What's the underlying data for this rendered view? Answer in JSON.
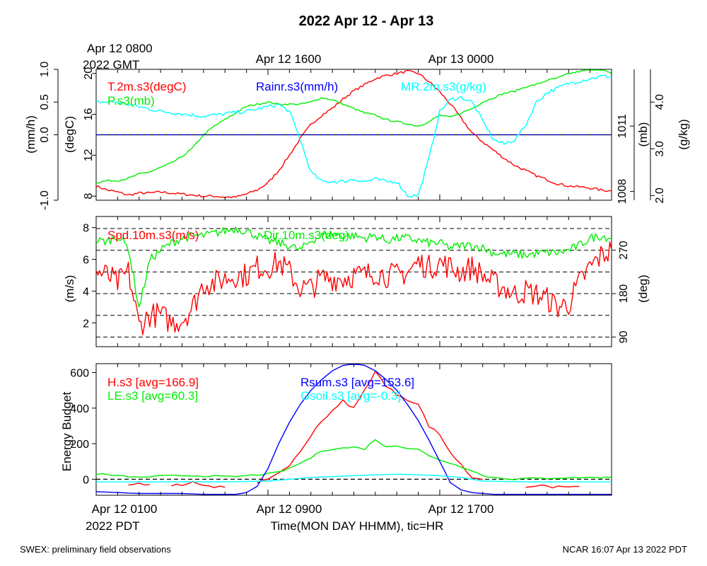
{
  "title": "2022 Apr 12 - Apr 13",
  "top_time_labels": {
    "first": "Apr 12 0800",
    "first_sub": "2022 GMT",
    "mid": "Apr 12 1600",
    "last": "Apr 13 0000"
  },
  "bottom_time_labels": {
    "first": "Apr 12 0100",
    "first_sub": "2022 PDT",
    "mid": "Apr 12 0900",
    "last": "Apr 12 1700",
    "axis_title": "Time(MON DAY HHMM), tic=HR"
  },
  "footer": {
    "left": "SWEX: preliminary field observations",
    "right": "NCAR 16:07 Apr 13 2022 PDT"
  },
  "colors": {
    "red": "#ff0000",
    "green": "#00ee00",
    "blue": "#0000ff",
    "cyan": "#00ffff",
    "black": "#000000"
  },
  "chart_data": [
    {
      "type": "line",
      "panel": "met",
      "x_unit": "hours since Apr 12 0100 PDT",
      "xlim": [
        0,
        24
      ],
      "axes": {
        "rain": {
          "label": "(mm/h)",
          "ylim": [
            -1.0,
            1.0
          ],
          "ticks": [
            "-1.0",
            "0.0",
            "0.5",
            "1.0"
          ],
          "tick_values": [
            -1.0,
            0.0,
            0.5,
            1.0
          ]
        },
        "temp": {
          "label": "(degC)",
          "ylim": [
            7.6,
            20.4
          ],
          "ticks": [
            "8",
            "12",
            "16",
            "20"
          ],
          "tick_values": [
            8,
            12,
            16,
            20
          ]
        },
        "pres": {
          "label": "(mb)",
          "ylim": [
            1007.6,
            1013.6
          ],
          "ticks": [
            "1008",
            "1011"
          ],
          "tick_values": [
            1008,
            1011
          ]
        },
        "mr": {
          "label": "(g/kg)",
          "ylim": [
            1.9,
            4.7
          ],
          "ticks": [
            "2.0",
            "3.0",
            "4.0"
          ],
          "tick_values": [
            2.0,
            3.0,
            4.0
          ]
        }
      },
      "series": [
        {
          "name": "T.2m.s3(degC)",
          "axis": "temp",
          "color": "#ff0000",
          "x": [
            0,
            0.5,
            1,
            1.5,
            2,
            2.5,
            3,
            3.5,
            4,
            4.5,
            5,
            5.5,
            6,
            6.5,
            7,
            7.5,
            8,
            8.5,
            9,
            9.5,
            10,
            10.5,
            11,
            11.5,
            12,
            12.5,
            13,
            13.5,
            14,
            14.5,
            15,
            15.5,
            16,
            16.5,
            17,
            17.5,
            18,
            18.5,
            19,
            19.5,
            20,
            20.5,
            21,
            21.5,
            22,
            22.5,
            23,
            23.5,
            24
          ],
          "y": [
            9.0,
            8.6,
            8.4,
            8.1,
            8.3,
            8.3,
            8.4,
            8.3,
            8.2,
            8.1,
            8.0,
            8.0,
            7.9,
            7.9,
            8.2,
            8.6,
            9.3,
            10.5,
            12.0,
            13.6,
            15.0,
            15.9,
            16.6,
            17.5,
            18.3,
            18.9,
            19.5,
            19.8,
            20.0,
            20.2,
            20.0,
            19.2,
            18.2,
            17.0,
            15.6,
            14.2,
            13.3,
            12.5,
            11.7,
            11.0,
            10.5,
            10.0,
            9.6,
            9.2,
            9.0,
            8.9,
            8.8,
            8.6,
            8.5
          ],
          "noise": 0.12
        },
        {
          "name": "P.s3(mb)",
          "axis": "pres",
          "color": "#00ee00",
          "x": [
            0,
            0.5,
            1,
            1.5,
            2,
            2.5,
            3,
            3.5,
            4,
            4.5,
            5,
            5.5,
            6,
            6.5,
            7,
            7.5,
            8,
            8.5,
            9,
            9.5,
            10,
            10.5,
            11,
            11.5,
            12,
            12.5,
            13,
            13.5,
            14,
            14.5,
            15,
            15.5,
            16,
            16.5,
            17,
            17.5,
            18,
            18.5,
            19,
            19.5,
            20,
            20.5,
            21,
            21.5,
            22,
            22.5,
            23,
            23.5,
            24
          ],
          "y": [
            1008.4,
            1008.5,
            1008.5,
            1008.6,
            1008.8,
            1008.9,
            1009.1,
            1009.3,
            1009.6,
            1010.0,
            1010.6,
            1011.0,
            1011.3,
            1011.6,
            1011.9,
            1012.0,
            1012.1,
            1012.0,
            1012.0,
            1012.0,
            1012.1,
            1012.3,
            1012.2,
            1012.0,
            1011.8,
            1011.6,
            1011.5,
            1011.3,
            1011.2,
            1011.1,
            1011.0,
            1011.2,
            1011.5,
            1011.4,
            1011.6,
            1011.8,
            1012.1,
            1012.3,
            1012.5,
            1012.6,
            1012.8,
            1012.9,
            1013.1,
            1013.2,
            1013.4,
            1013.5,
            1013.6,
            1013.6,
            1013.4
          ],
          "noise": 0.04
        },
        {
          "name": "Rainr.s3(mm/h)",
          "axis": "rain",
          "color": "#0000ff",
          "x": [
            0,
            24
          ],
          "y": [
            0.0,
            0.0
          ],
          "noise": 0
        },
        {
          "name": "MR.2m.s3(g/kg)",
          "axis": "mr",
          "color": "#00ffff",
          "x": [
            0,
            0.5,
            1,
            1.5,
            2,
            2.5,
            3,
            3.5,
            4,
            4.5,
            5,
            5.5,
            6,
            6.5,
            7,
            7.5,
            8,
            8.5,
            9,
            9.5,
            10,
            10.5,
            11,
            11.5,
            12,
            12.5,
            13,
            13.5,
            14,
            14.5,
            15,
            15.5,
            16,
            16.5,
            17,
            17.5,
            18,
            18.5,
            19,
            19.5,
            20,
            20.5,
            21,
            21.5,
            22,
            22.5,
            23,
            23.5,
            24
          ],
          "y": [
            4.0,
            4.0,
            4.0,
            3.95,
            3.9,
            3.85,
            3.8,
            3.78,
            3.75,
            3.72,
            3.7,
            3.72,
            3.75,
            3.78,
            3.8,
            3.85,
            3.9,
            3.95,
            3.8,
            3.2,
            2.5,
            2.3,
            2.3,
            2.3,
            2.35,
            2.3,
            2.35,
            2.3,
            2.3,
            2.0,
            2.0,
            2.8,
            3.8,
            4.05,
            4.1,
            4.0,
            3.6,
            3.2,
            3.1,
            3.2,
            3.5,
            4.0,
            4.2,
            4.3,
            4.4,
            4.45,
            4.5,
            4.55,
            4.55
          ],
          "noise": 0.04
        }
      ],
      "legend_labels": [
        "T.2m.s3(degC)",
        "P.s3(mb)",
        "Rainr.s3(mm/h)",
        "MR.2m.s3(g/kg)"
      ]
    },
    {
      "type": "line",
      "panel": "wind",
      "x_unit": "hours since Apr 12 0100 PDT",
      "xlim": [
        0,
        24
      ],
      "axes": {
        "spd": {
          "label": "(m/s)",
          "ylim": [
            0.5,
            8.7
          ],
          "ticks": [
            "2",
            "4",
            "6",
            "8"
          ],
          "tick_values": [
            2,
            4,
            6,
            8
          ]
        },
        "dir": {
          "label": "(deg)",
          "ylim": [
            70,
            340
          ],
          "ticks": [
            "90",
            "180",
            "270"
          ],
          "tick_values": [
            90,
            180,
            270
          ]
        }
      },
      "dashed_dir_lines": [
        90,
        135,
        180,
        225,
        270,
        315
      ],
      "series": [
        {
          "name": "Spd.10m.s3(m/s)",
          "axis": "spd",
          "color": "#ff0000",
          "x": [
            0,
            0.5,
            1,
            1.5,
            2,
            2.5,
            3,
            3.5,
            4,
            4.5,
            5,
            5.5,
            6,
            6.5,
            7,
            7.5,
            8,
            8.5,
            9,
            9.5,
            10,
            10.5,
            11,
            11.5,
            12,
            12.5,
            13,
            13.5,
            14,
            14.5,
            15,
            15.5,
            16,
            16.5,
            17,
            17.5,
            18,
            18.5,
            19,
            19.5,
            20,
            20.5,
            21,
            21.5,
            22,
            22.5,
            23,
            23.5,
            24
          ],
          "y": [
            5.2,
            5.0,
            4.5,
            5.2,
            1.8,
            2.5,
            2.5,
            2.0,
            2.2,
            3.0,
            4.5,
            4.5,
            4.8,
            5.0,
            5.0,
            5.5,
            5.5,
            5.8,
            5.2,
            4.2,
            4.2,
            4.8,
            4.8,
            4.8,
            5.0,
            5.0,
            5.2,
            5.0,
            5.0,
            5.2,
            5.8,
            5.5,
            5.8,
            5.5,
            5.2,
            5.5,
            5.0,
            4.5,
            4.2,
            3.8,
            4.0,
            3.8,
            3.5,
            3.0,
            3.2,
            4.5,
            5.5,
            6.2,
            6.6
          ],
          "noise": 0.8
        },
        {
          "name": "Dir.10m.s3(deg)",
          "axis": "dir",
          "color": "#00ee00",
          "x": [
            0,
            0.5,
            1,
            1.5,
            2,
            2.5,
            3,
            3.5,
            4,
            4.5,
            5,
            5.5,
            6,
            6.5,
            7,
            7.5,
            8,
            8.5,
            9,
            9.5,
            10,
            10.5,
            11,
            11.5,
            12,
            12.5,
            13,
            13.5,
            14,
            14.5,
            15,
            15.5,
            16,
            16.5,
            17,
            17.5,
            18,
            18.5,
            19,
            19.5,
            20,
            20.5,
            21,
            21.5,
            22,
            22.5,
            23,
            23.5,
            24
          ],
          "y": [
            290,
            288,
            300,
            275,
            150,
            250,
            270,
            285,
            295,
            300,
            300,
            305,
            310,
            315,
            310,
            300,
            290,
            285,
            280,
            270,
            290,
            300,
            305,
            300,
            300,
            295,
            300,
            290,
            295,
            295,
            290,
            285,
            285,
            275,
            280,
            280,
            275,
            265,
            262,
            262,
            260,
            263,
            265,
            265,
            270,
            280,
            295,
            300,
            295
          ],
          "noise": 9
        }
      ],
      "legend_labels": [
        "Spd.10m.s3(m/s)",
        "Dir.10m.s3(deg)"
      ]
    },
    {
      "type": "line",
      "panel": "energy",
      "x_unit": "hours since Apr 12 0100 PDT",
      "xlim": [
        0,
        24
      ],
      "ylabel": "Energy Budget",
      "ylim": [
        -90,
        650
      ],
      "ticks": [
        "0",
        "200",
        "400",
        "600"
      ],
      "tick_values": [
        0,
        200,
        400,
        600
      ],
      "dashed_zero_line": true,
      "series": [
        {
          "name": "H.s3",
          "avg": "166.9",
          "color": "#ff0000",
          "avg_label": "H.s3 [avg=166.9]",
          "x": [
            1.5,
            2,
            2.5,
            null,
            3.5,
            4,
            4.5,
            5,
            5.5,
            6,
            null,
            7.5,
            8,
            8.5,
            9,
            9.5,
            10,
            10.5,
            11,
            11.5,
            12,
            12.5,
            13,
            13.5,
            14,
            14.5,
            15,
            15.5,
            16,
            16.5,
            17,
            17.5,
            18,
            null,
            20,
            20.5,
            21,
            21.5,
            22,
            22.5
          ],
          "y": [
            -30,
            -25,
            -30,
            null,
            -30,
            -40,
            -20,
            -30,
            -40,
            -45,
            null,
            -30,
            5,
            35,
            80,
            150,
            250,
            330,
            380,
            440,
            400,
            500,
            610,
            520,
            480,
            450,
            420,
            300,
            250,
            150,
            80,
            10,
            0,
            null,
            -40,
            -35,
            -45,
            -40,
            -45,
            -40
          ],
          "noise": 8
        },
        {
          "name": "LE.s3",
          "avg": "60.3",
          "color": "#00ee00",
          "avg_label": "LE.s3 [avg=60.3]",
          "x": [
            0,
            0.5,
            1,
            1.5,
            2,
            2.5,
            3,
            3.5,
            4,
            4.5,
            5,
            5.5,
            6,
            6.5,
            7,
            7.5,
            8,
            8.5,
            9,
            9.5,
            10,
            10.5,
            11,
            11.5,
            12,
            12.5,
            13,
            13.5,
            14,
            14.5,
            15,
            15.5,
            16,
            16.5,
            17,
            17.5,
            18,
            18.5,
            19,
            19.5,
            20,
            20.5,
            21,
            21.5,
            22,
            22.5,
            23,
            23.5,
            24
          ],
          "y": [
            30,
            25,
            20,
            15,
            10,
            15,
            18,
            20,
            20,
            20,
            18,
            18,
            15,
            15,
            20,
            25,
            30,
            40,
            60,
            90,
            120,
            160,
            170,
            175,
            180,
            170,
            225,
            180,
            190,
            175,
            170,
            130,
            110,
            90,
            70,
            50,
            20,
            10,
            5,
            0,
            5,
            5,
            5,
            8,
            8,
            10,
            10,
            10,
            10
          ],
          "noise": 4
        },
        {
          "name": "Rsum.s3",
          "avg": "153.6",
          "color": "#0000ff",
          "avg_label": "Rsum.s3 [avg=153.6]",
          "x": [
            0,
            1,
            2,
            3,
            4,
            5,
            6,
            6.5,
            7,
            7.5,
            8,
            8.5,
            9,
            9.5,
            10,
            10.5,
            11,
            11.5,
            12,
            12.5,
            13,
            13.5,
            14,
            14.5,
            15,
            15.5,
            16,
            16.5,
            17,
            17.5,
            18,
            18.5,
            19,
            20,
            21,
            22,
            23,
            24
          ],
          "y": [
            -70,
            -75,
            -80,
            -80,
            -80,
            -85,
            -85,
            -85,
            -75,
            -40,
            60,
            200,
            320,
            420,
            500,
            560,
            610,
            640,
            650,
            640,
            610,
            560,
            500,
            420,
            330,
            220,
            100,
            -20,
            -60,
            -75,
            -80,
            -85,
            -85,
            -85,
            -85,
            -85,
            -85,
            -85
          ],
          "noise": 0
        },
        {
          "name": "Gsoil.s3",
          "avg": "-0.3",
          "color": "#00ffff",
          "avg_label": "Gsoil.s3 [avg=-0.3]",
          "x": [
            0,
            2,
            4,
            6,
            8,
            9,
            10,
            11,
            12,
            13,
            14,
            15,
            16,
            17,
            18,
            20,
            22,
            24
          ],
          "y": [
            -15,
            -15,
            -15,
            -15,
            -10,
            0,
            10,
            15,
            20,
            25,
            28,
            25,
            20,
            10,
            -10,
            -15,
            -15,
            -15
          ],
          "noise": 0
        }
      ],
      "legend_labels": [
        "H.s3 [avg=166.9]",
        "LE.s3 [avg=60.3]",
        "Rsum.s3 [avg=153.6]",
        "Gsoil.s3 [avg=-0.3]"
      ]
    }
  ]
}
